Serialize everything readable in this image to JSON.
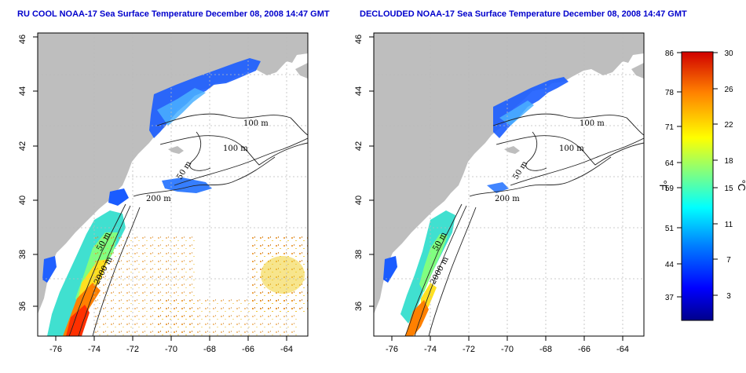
{
  "panels": [
    {
      "id": "left",
      "title": "RU COOL NOAA-17 Sea Surface Temperature December 08, 2008 14:47 GMT",
      "contour_labels": [
        "100 m",
        "100 m",
        "50 m",
        "200 m",
        "50 m",
        "2000 m"
      ],
      "x_ticks": [
        "-76",
        "-74",
        "-72",
        "-70",
        "-68",
        "-66",
        "-64"
      ],
      "y_ticks": [
        "36",
        "38",
        "40",
        "42",
        "44",
        "46"
      ]
    },
    {
      "id": "right",
      "title": "DECLOUDED NOAA-17 Sea Surface Temperature December 08, 2008 14:47 GMT",
      "contour_labels": [
        "100 m",
        "100 m",
        "50 m",
        "200 m",
        "50 m",
        "2000 m"
      ],
      "x_ticks": [
        "-76",
        "-74",
        "-72",
        "-70",
        "-68",
        "-66",
        "-64"
      ],
      "y_ticks": [
        "36",
        "38",
        "40",
        "42",
        "44",
        "46"
      ]
    }
  ],
  "colorbar": {
    "fahrenheit_ticks": [
      "86",
      "78",
      "71",
      "64",
      "59",
      "51",
      "44",
      "37"
    ],
    "celsius_ticks": [
      "30",
      "26",
      "22",
      "18",
      "15",
      "11",
      "7",
      "3"
    ],
    "unit_f": "°F",
    "unit_c": "°C",
    "colors": [
      "#ff0000",
      "#ff8000",
      "#ffff00",
      "#80ff80",
      "#00ffff",
      "#0080ff",
      "#0000ff",
      "#00008b"
    ]
  },
  "colors": {
    "land": "#bebebe",
    "title": "#0000cc",
    "grid": "#bbbbbb"
  }
}
